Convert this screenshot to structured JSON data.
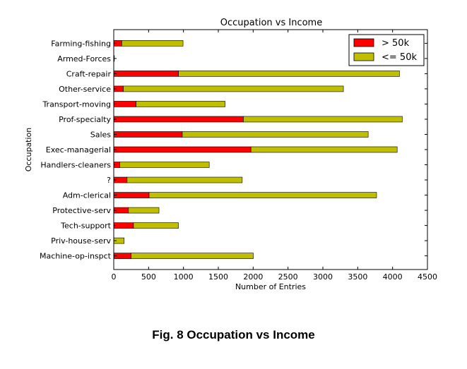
{
  "figure_caption": "Fig. 8 Occupation vs Income",
  "colors": {
    "over_50k": "#ff0000",
    "under_50k": "#bfbf00"
  },
  "chart_data": {
    "type": "bar",
    "orientation": "horizontal",
    "stacked": true,
    "title": "Occupation vs Income",
    "xlabel": "Number of Entries",
    "ylabel": "Occupation",
    "xlim": [
      0,
      4500
    ],
    "xticks": [
      0,
      500,
      1000,
      1500,
      2000,
      2500,
      3000,
      3500,
      4000,
      4500
    ],
    "legend_position": "top-right",
    "categories": [
      "Farming-fishing",
      "Armed-Forces",
      "Craft-repair",
      "Other-service",
      "Transport-moving",
      "Prof-specialty",
      "Sales",
      "Exec-managerial",
      "Handlers-cleaners",
      "?",
      "Adm-clerical",
      "Protective-serv",
      "Tech-support",
      "Priv-house-serv",
      "Machine-op-inspct"
    ],
    "series": [
      {
        "name": "> 50k",
        "values": [
          115,
          1,
          929,
          137,
          320,
          1859,
          983,
          1968,
          86,
          191,
          507,
          211,
          283,
          1,
          250
        ]
      },
      {
        "name": "<= 50k",
        "values": [
          879,
          8,
          3170,
          3158,
          1277,
          2281,
          2667,
          2098,
          1284,
          1652,
          3263,
          438,
          645,
          148,
          1752
        ]
      }
    ]
  }
}
